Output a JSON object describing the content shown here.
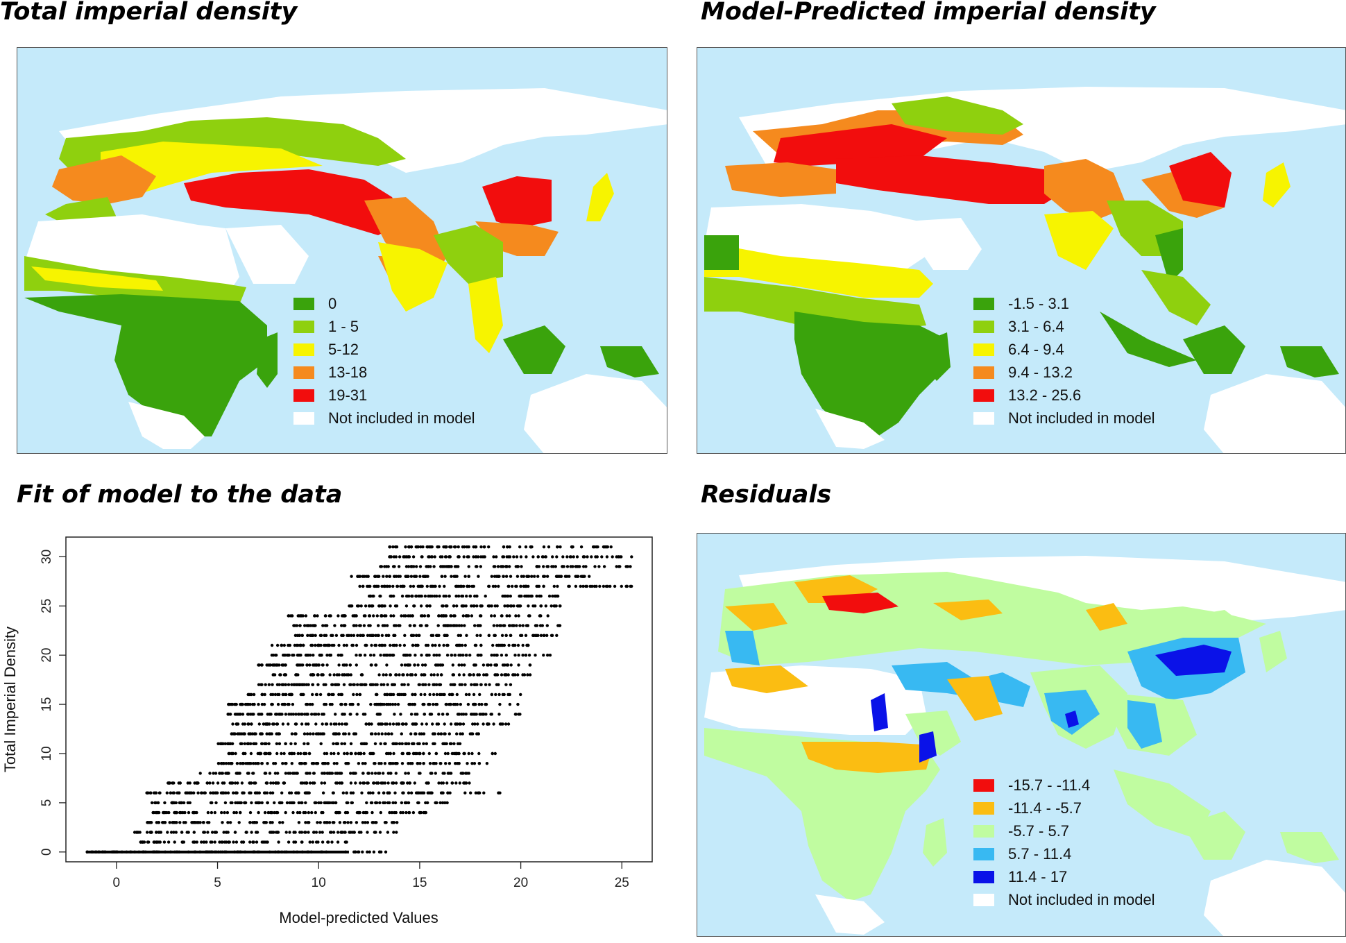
{
  "panels": {
    "total": {
      "title": "Total imperial density",
      "legend": [
        {
          "label": "0",
          "color": "#3aa30c"
        },
        {
          "label": "1 - 5",
          "color": "#8fd00e"
        },
        {
          "label": "5-12",
          "color": "#f7f400"
        },
        {
          "label": "13-18",
          "color": "#f58a1e"
        },
        {
          "label": "19-31",
          "color": "#f20d0d"
        },
        {
          "label": "Not included in model",
          "color": "#ffffff"
        }
      ]
    },
    "predicted": {
      "title": "Model-Predicted imperial density",
      "legend": [
        {
          "label": "-1.5 - 3.1",
          "color": "#3aa30c"
        },
        {
          "label": "3.1 - 6.4",
          "color": "#8fd00e"
        },
        {
          "label": "6.4 - 9.4",
          "color": "#f7f400"
        },
        {
          "label": "9.4 - 13.2",
          "color": "#f58a1e"
        },
        {
          "label": "13.2 - 25.6",
          "color": "#f20d0d"
        },
        {
          "label": "Not included in model",
          "color": "#ffffff"
        }
      ]
    },
    "fit": {
      "title": "Fit of model to the data"
    },
    "residuals": {
      "title": "Residuals",
      "legend": [
        {
          "label": "-15.7 - -11.4",
          "color": "#f20d0d"
        },
        {
          "label": "-11.4 - -5.7",
          "color": "#fbbd12"
        },
        {
          "label": "-5.7 - 5.7",
          "color": "#c0fca0"
        },
        {
          "label": "5.7 - 11.4",
          "color": "#38b9f2"
        },
        {
          "label": "11.4 - 17",
          "color": "#0a12e8"
        },
        {
          "label": "Not included in model",
          "color": "#ffffff"
        }
      ]
    }
  },
  "colors": {
    "ocean": "#c5eafa",
    "excluded": "#ffffff"
  },
  "chart_data": {
    "type": "scatter",
    "title": "",
    "xlabel": "Model-predicted Values",
    "ylabel": "Total Imperial Density",
    "xlim": [
      -2.5,
      26.5
    ],
    "ylim": [
      -1,
      32
    ],
    "xticks": [
      0,
      5,
      10,
      15,
      20,
      25
    ],
    "yticks": [
      0,
      5,
      10,
      15,
      20,
      25,
      30
    ],
    "point_color": "#000000",
    "grid": false,
    "points_note_x": [
      -1.5,
      25.6
    ],
    "series": [
      {
        "values_by_y": [
          {
            "y": 0,
            "x": [
              -1.5,
              13.8
            ]
          },
          {
            "y": 1,
            "x": [
              1.2,
              11.8
            ]
          },
          {
            "y": 2,
            "x": [
              0.8,
              14.2
            ]
          },
          {
            "y": 3,
            "x": [
              1.5,
              14.0
            ]
          },
          {
            "y": 4,
            "x": [
              1.8,
              15.5
            ]
          },
          {
            "y": 5,
            "x": [
              1.5,
              16.5
            ]
          },
          {
            "y": 6,
            "x": [
              1.5,
              19.0
            ]
          },
          {
            "y": 7,
            "x": [
              2.5,
              17.5
            ]
          },
          {
            "y": 8,
            "x": [
              4.0,
              18.0
            ]
          },
          {
            "y": 9,
            "x": [
              5.0,
              18.5
            ]
          },
          {
            "y": 10,
            "x": [
              5.5,
              19.0
            ]
          },
          {
            "y": 11,
            "x": [
              5.0,
              17.0
            ]
          },
          {
            "y": 12,
            "x": [
              5.5,
              18.0
            ]
          },
          {
            "y": 13,
            "x": [
              5.5,
              19.5
            ]
          },
          {
            "y": 14,
            "x": [
              5.5,
              20.0
            ]
          },
          {
            "y": 15,
            "x": [
              5.5,
              20.0
            ]
          },
          {
            "y": 16,
            "x": [
              6.5,
              20.0
            ]
          },
          {
            "y": 17,
            "x": [
              7.0,
              19.5
            ]
          },
          {
            "y": 18,
            "x": [
              7.5,
              20.5
            ]
          },
          {
            "y": 19,
            "x": [
              7.0,
              20.5
            ]
          },
          {
            "y": 20,
            "x": [
              7.5,
              21.5
            ]
          },
          {
            "y": 21,
            "x": [
              7.5,
              20.5
            ]
          },
          {
            "y": 22,
            "x": [
              8.5,
              22.0
            ]
          },
          {
            "y": 23,
            "x": [
              8.5,
              22.0
            ]
          },
          {
            "y": 24,
            "x": [
              8.5,
              21.5
            ]
          },
          {
            "y": 25,
            "x": [
              11.5,
              22.5
            ]
          },
          {
            "y": 26,
            "x": [
              12.5,
              22.0
            ]
          },
          {
            "y": 27,
            "x": [
              12.0,
              25.5
            ]
          },
          {
            "y": 28,
            "x": [
              11.5,
              23.5
            ]
          },
          {
            "y": 29,
            "x": [
              13.0,
              25.5
            ]
          },
          {
            "y": 30,
            "x": [
              13.5,
              25.5
            ]
          },
          {
            "y": 31,
            "x": [
              13.5,
              24.5
            ]
          }
        ]
      }
    ]
  }
}
